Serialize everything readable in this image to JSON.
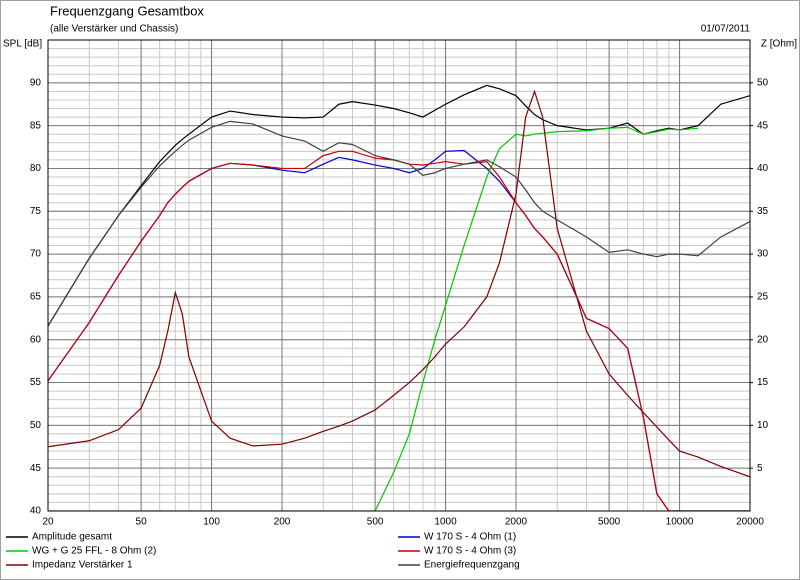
{
  "chart_data": {
    "type": "line",
    "title": "Frequenzgang Gesamtbox",
    "subtitle": "(alle Verstärker und Chassis)",
    "date": "01/07/2011",
    "ylabel": "SPL [dB]",
    "y2label": "Z [Ohm]",
    "xscale": "log",
    "grid": true,
    "legend": "bottom",
    "xlim": [
      20,
      20000
    ],
    "xticks": [
      20,
      50,
      100,
      200,
      500,
      1000,
      2000,
      5000,
      10000,
      20000
    ],
    "ylim": [
      40,
      95
    ],
    "yticks": [
      40,
      45,
      50,
      55,
      60,
      65,
      70,
      75,
      80,
      85,
      90
    ],
    "y2lim": [
      0,
      55
    ],
    "y2ticks": [
      5,
      10,
      15,
      20,
      25,
      30,
      35,
      40,
      45,
      50
    ],
    "x": [
      20,
      30,
      40,
      50,
      60,
      65,
      70,
      75,
      80,
      100,
      120,
      150,
      200,
      250,
      300,
      350,
      400,
      500,
      600,
      700,
      800,
      900,
      1000,
      1200,
      1500,
      1700,
      2000,
      2200,
      2400,
      2600,
      3000,
      4000,
      5000,
      6000,
      7000,
      8000,
      9000,
      10000,
      12000,
      15000,
      20000
    ],
    "series": [
      {
        "name": "Amplitude gesamt",
        "color": "#000000",
        "values": [
          61.6,
          69.5,
          74.5,
          78,
          80.8,
          81.8,
          82.7,
          83.4,
          84,
          86,
          86.7,
          86.3,
          86,
          85.9,
          86,
          87.5,
          87.8,
          87.4,
          87,
          86.5,
          86,
          86.8,
          87.5,
          88.6,
          89.7,
          89.3,
          88.5,
          87.3,
          86.3,
          85.7,
          85,
          84.5,
          84.7,
          85.3,
          84,
          84.4,
          84.7,
          84.5,
          85,
          87.5,
          88.5
        ]
      },
      {
        "name": "W 170 S - 4 Ohm (1)",
        "color": "#0000c8",
        "values": [
          55.2,
          62,
          67.5,
          71.5,
          74.5,
          76,
          77,
          77.8,
          78.5,
          80,
          80.6,
          80.4,
          79.8,
          79.5,
          80.5,
          81.3,
          81,
          80.4,
          80,
          79.5,
          80,
          81,
          82,
          82.1,
          80,
          78.5,
          76,
          74.5,
          73,
          72,
          70,
          62.5,
          61.3,
          59,
          51,
          42,
          40,
          40,
          40,
          40,
          40
        ]
      },
      {
        "name": "WG + G 25 FFL - 8 Ohm (2)",
        "color": "#00c800",
        "values": [
          40,
          40,
          40,
          40,
          40,
          40,
          40,
          40,
          40,
          40,
          40,
          40,
          40,
          40,
          40,
          40,
          40,
          40,
          44.5,
          49,
          55,
          60,
          64,
          71,
          79,
          82.3,
          84,
          83.8,
          84,
          84.1,
          84.3,
          84.4,
          84.7,
          84.8,
          84,
          84.3,
          84.6,
          84.5,
          84.7,
          null,
          null
        ]
      },
      {
        "name": "W 170 S - 4 Ohm (3)",
        "color": "#c80000",
        "values": [
          55.2,
          62,
          67.5,
          71.5,
          74.5,
          76,
          77,
          77.8,
          78.5,
          80,
          80.6,
          80.4,
          80,
          80,
          81.5,
          82,
          82,
          81.2,
          81,
          80.5,
          80.4,
          80.6,
          80.8,
          80.5,
          80.8,
          79,
          76,
          74.5,
          73,
          72,
          70,
          62.5,
          61.3,
          59,
          51,
          42,
          40,
          40,
          40,
          40,
          40
        ]
      },
      {
        "name": "Impedanz Verstärker 1",
        "color": "#800000",
        "axis": "y2",
        "values": [
          7.5,
          8.2,
          9.5,
          12,
          17,
          21,
          25.5,
          23,
          18,
          10.5,
          8.5,
          7.6,
          7.8,
          8.5,
          9.3,
          9.9,
          10.5,
          11.8,
          13.5,
          15,
          16.5,
          18,
          19.5,
          21.5,
          25,
          29,
          37,
          46,
          49,
          46,
          33,
          21,
          16,
          13.5,
          11.5,
          9.8,
          8.3,
          7,
          6.3,
          5.2,
          4
        ]
      },
      {
        "name": "Energiefrequenzgang",
        "color": "#404040",
        "values": [
          61.6,
          69.5,
          74.5,
          77.8,
          80.3,
          81.2,
          82,
          82.7,
          83.3,
          84.8,
          85.5,
          85.2,
          83.8,
          83.2,
          82,
          83,
          82.8,
          81.5,
          81,
          80.5,
          79.2,
          79.5,
          80,
          80.5,
          81,
          80.2,
          79,
          77.5,
          76,
          75,
          74,
          72,
          70.2,
          70.5,
          70,
          69.7,
          70,
          70,
          69.8,
          72,
          73.8
        ]
      }
    ]
  }
}
